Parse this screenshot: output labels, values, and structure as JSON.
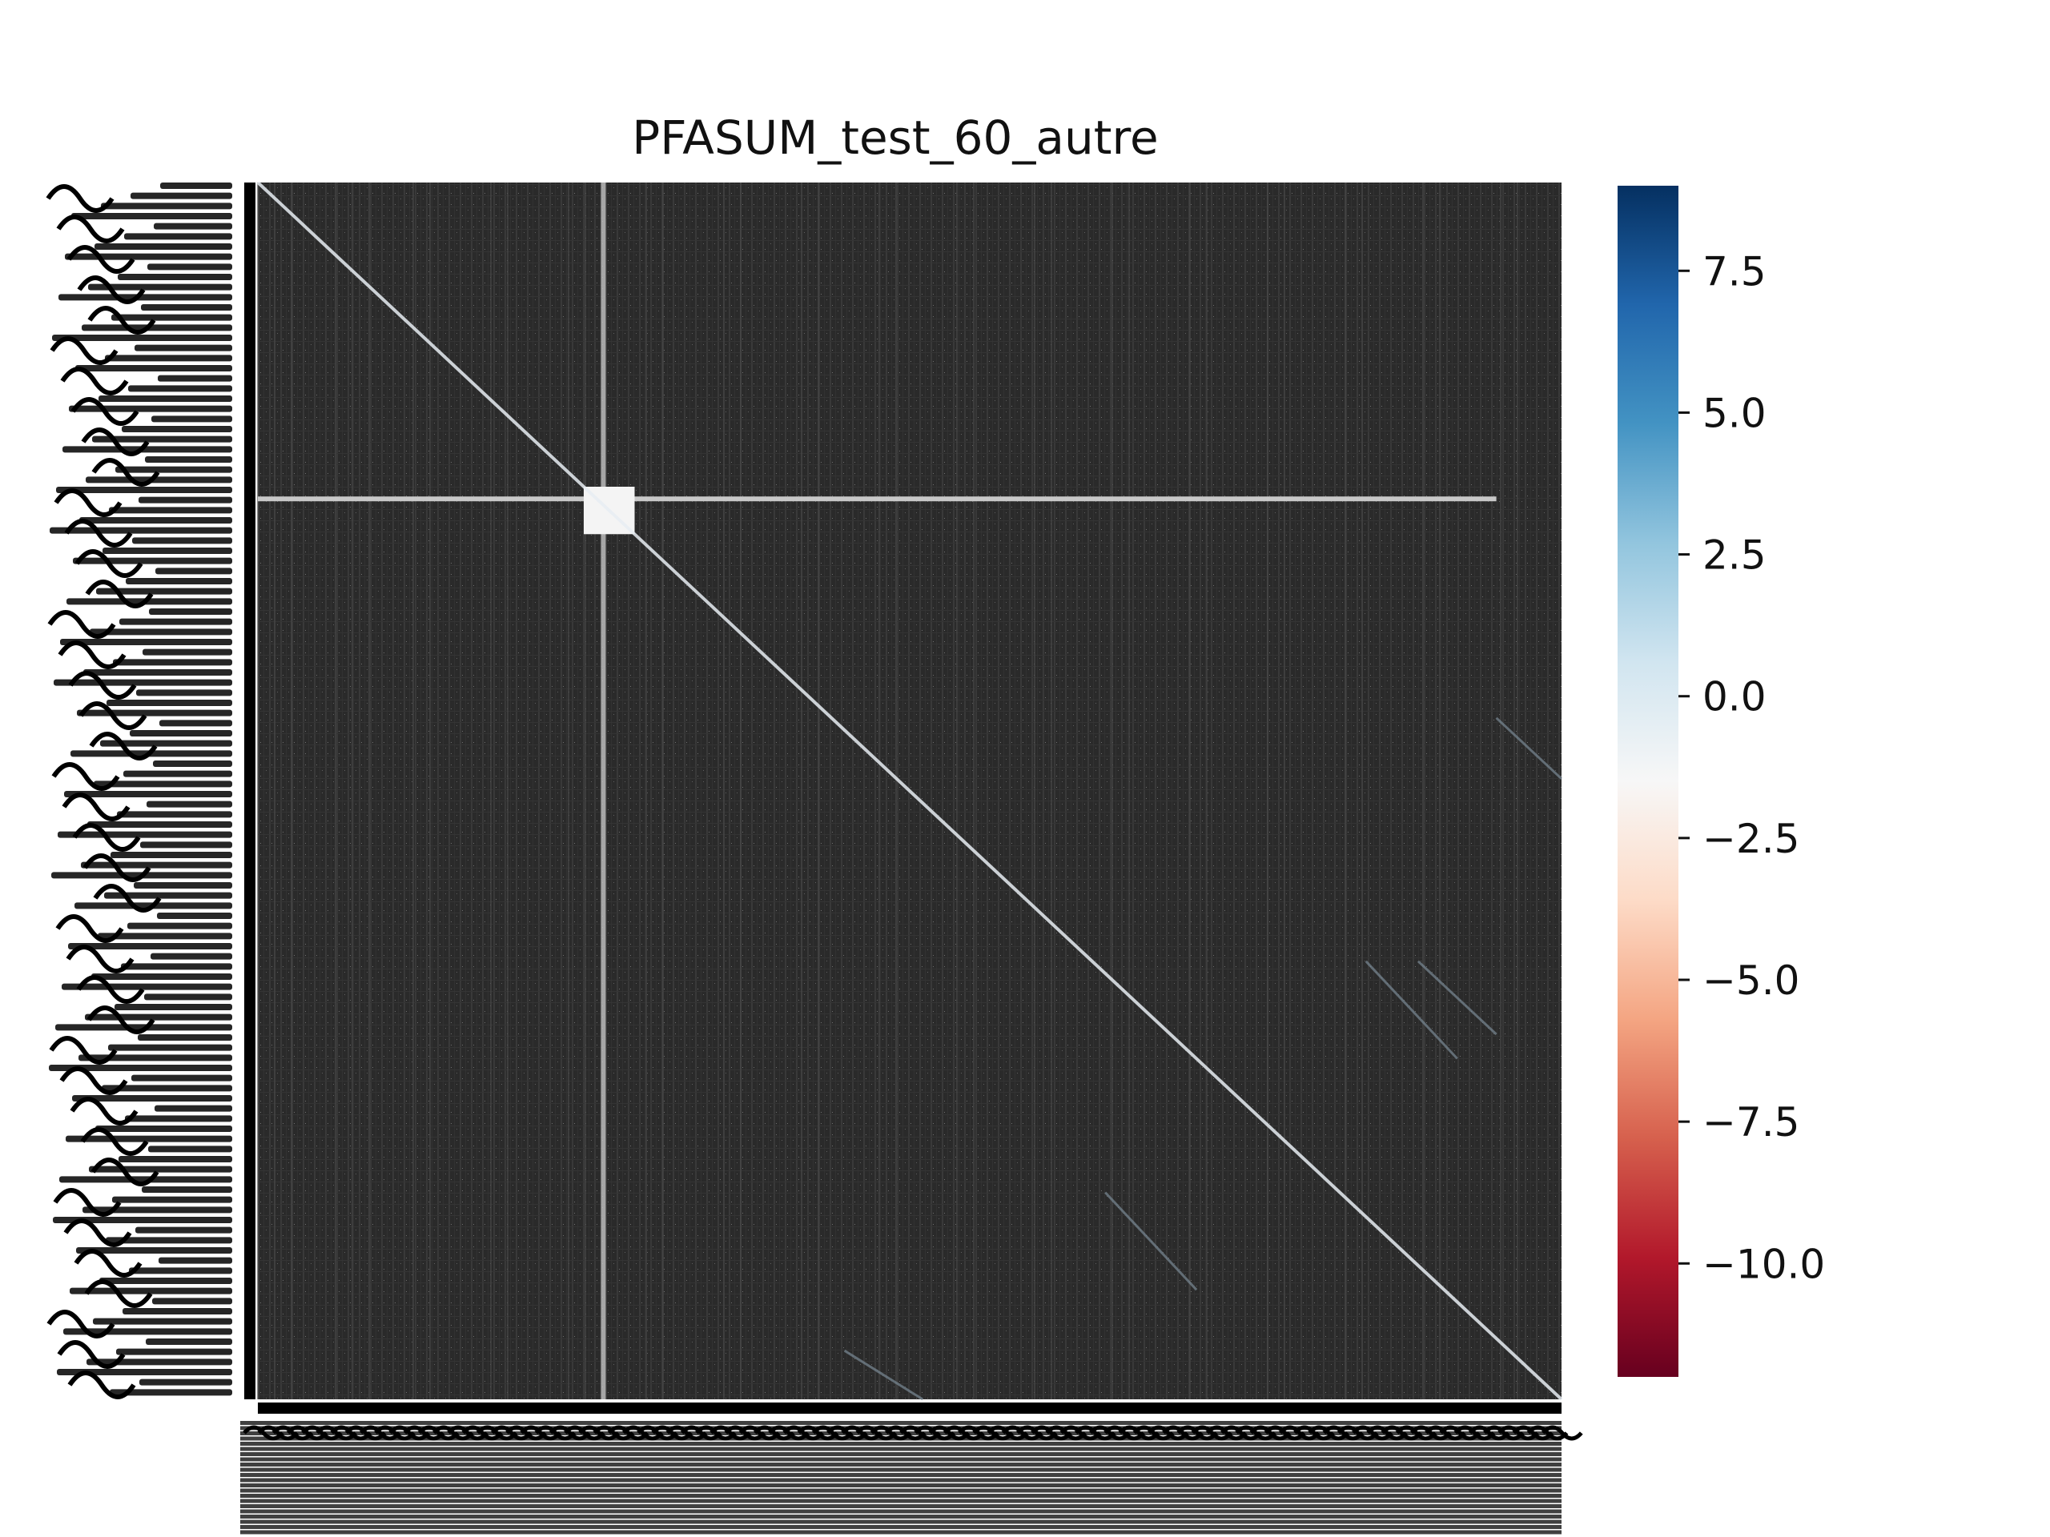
{
  "chart_data": {
    "type": "heatmap",
    "title": "PFASUM_test_60_autre",
    "xlabel": "",
    "ylabel": "",
    "grid": false,
    "description_of_cells": "dense square matrix of scores; most cells near the low/dark background, a bright main diagonal, one bright row and one bright column crossing near the upper-left, a bright block where they meet, and faint off-diagonal streaks",
    "matrix_size_estimate": 700,
    "features": {
      "diagonal_value": 2.5,
      "background_value": -1.0,
      "highlight_row_fraction": 0.26,
      "highlight_col_fraction": 0.265,
      "highlight_block_fraction": [
        0.25,
        0.3
      ],
      "highlight_value": 1.0
    },
    "colorbar": {
      "colormap": "RdBu",
      "vmin": -12,
      "vmax": 9,
      "ticks": [
        7.5,
        5.0,
        2.5,
        0.0,
        -2.5,
        -5.0,
        -7.5,
        -10.0
      ],
      "tick_labels": [
        "7.5",
        "5.0",
        "2.5",
        "0.0",
        "−2.5",
        "−5.0",
        "−7.5",
        "−10.0"
      ]
    },
    "tick_labels_note": "row and column tick labels are densely overlapped and illegible"
  },
  "colors": {
    "heatmap_background": "#2b2b2b",
    "diagonal": "#e8eef3",
    "highlight": "#f4f4f4",
    "colormap_stops": [
      "#67001f",
      "#b2182b",
      "#d6604d",
      "#f4a582",
      "#fddbc7",
      "#f7f7f7",
      "#d1e5f0",
      "#92c5de",
      "#4393c3",
      "#2166ac",
      "#053061"
    ]
  }
}
